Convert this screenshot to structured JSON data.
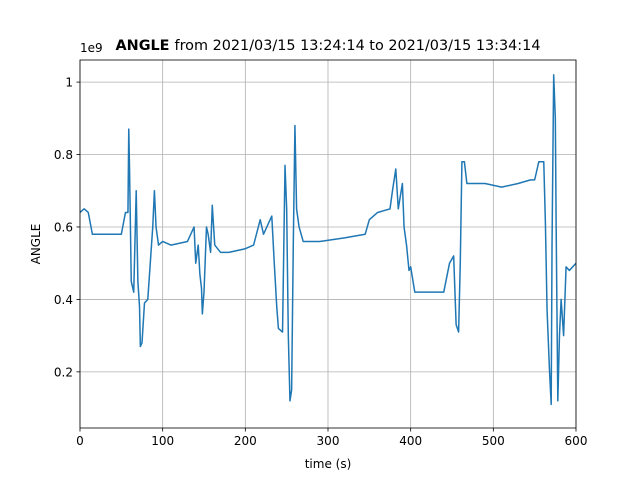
{
  "chart_data": {
    "type": "line",
    "title_bold": "ANGLE",
    "title": "from 2021/03/15 13:24:14 to 2021/03/15 13:34:14",
    "x_label": "time (s)",
    "y_label": "ANGLE",
    "y_offset_label": "1e9",
    "x": [
      0,
      5,
      10,
      15,
      30,
      50,
      55,
      58,
      59,
      60,
      62,
      65,
      68,
      70,
      72,
      73,
      75,
      78,
      82,
      88,
      90,
      92,
      95,
      100,
      110,
      130,
      138,
      140,
      143,
      145,
      147,
      148,
      150,
      153,
      155,
      158,
      160,
      163,
      170,
      180,
      200,
      210,
      218,
      222,
      228,
      232,
      235,
      238,
      240,
      245,
      248,
      250,
      252,
      254,
      256,
      258,
      260,
      262,
      265,
      270,
      290,
      320,
      345,
      350,
      360,
      375,
      378,
      382,
      385,
      390,
      392,
      395,
      398,
      400,
      405,
      420,
      440,
      447,
      452,
      455,
      458,
      460,
      462,
      465,
      468,
      490,
      510,
      530,
      545,
      550,
      555,
      561,
      563,
      565,
      568,
      570,
      571,
      573,
      575,
      576,
      578,
      580,
      582,
      585,
      588,
      592,
      600
    ],
    "series": [
      {
        "name": "ANGLE",
        "color": "#1f77b4",
        "values": [
          0.64,
          0.65,
          0.64,
          0.58,
          0.58,
          0.58,
          0.64,
          0.64,
          0.87,
          0.75,
          0.45,
          0.42,
          0.7,
          0.45,
          0.38,
          0.27,
          0.28,
          0.39,
          0.4,
          0.6,
          0.7,
          0.6,
          0.55,
          0.56,
          0.55,
          0.56,
          0.6,
          0.5,
          0.55,
          0.47,
          0.43,
          0.36,
          0.42,
          0.6,
          0.58,
          0.53,
          0.66,
          0.55,
          0.53,
          0.53,
          0.54,
          0.55,
          0.62,
          0.58,
          0.61,
          0.63,
          0.5,
          0.38,
          0.32,
          0.31,
          0.77,
          0.65,
          0.3,
          0.12,
          0.15,
          0.55,
          0.88,
          0.65,
          0.6,
          0.56,
          0.56,
          0.57,
          0.58,
          0.62,
          0.64,
          0.65,
          0.7,
          0.76,
          0.65,
          0.72,
          0.6,
          0.55,
          0.48,
          0.49,
          0.42,
          0.42,
          0.42,
          0.5,
          0.52,
          0.33,
          0.31,
          0.5,
          0.78,
          0.78,
          0.72,
          0.72,
          0.71,
          0.72,
          0.73,
          0.73,
          0.78,
          0.78,
          0.61,
          0.37,
          0.2,
          0.11,
          0.55,
          1.02,
          0.9,
          0.6,
          0.12,
          0.3,
          0.4,
          0.3,
          0.49,
          0.48,
          0.5
        ]
      }
    ],
    "xlim": [
      0,
      600
    ],
    "xticks": [
      0,
      100,
      200,
      300,
      400,
      500,
      600
    ],
    "ylim": [
      0.045,
      1.061
    ],
    "yticks": [
      0.2,
      0.4,
      0.6,
      0.8,
      1.0
    ],
    "grid": true
  }
}
